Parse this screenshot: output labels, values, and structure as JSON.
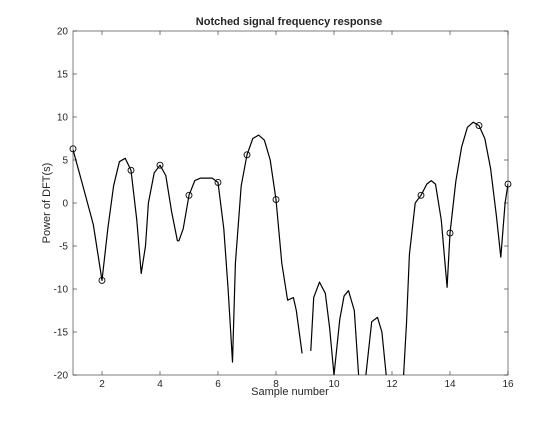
{
  "chart_data": {
    "type": "line",
    "title": "Notched signal frequency response",
    "xlabel": "Sample number",
    "ylabel": "Power of DFT(s)",
    "xlim": [
      1,
      16
    ],
    "ylim": [
      -20,
      20
    ],
    "grid": false,
    "colors": {
      "line": "#000000",
      "markers": "#000000",
      "axes": "#262626"
    },
    "xticks": [
      "2",
      "4",
      "6",
      "8",
      "10",
      "12",
      "14",
      "16"
    ],
    "yticks": [
      "-20",
      "-15",
      "-10",
      "-5",
      "0",
      "5",
      "10",
      "15",
      "20"
    ],
    "series": [
      {
        "kind": "curve",
        "x": [
          1.0,
          1.3,
          1.7,
          2.0,
          2.2,
          2.4,
          2.6,
          2.8,
          3.0,
          3.2,
          3.35,
          3.5,
          3.6,
          3.8,
          4.0,
          4.2,
          4.4,
          4.6,
          4.65,
          4.8,
          5.0,
          5.2,
          5.4,
          5.6,
          5.8,
          6.0,
          6.2,
          6.35,
          6.5,
          6.6,
          6.8,
          7.0,
          7.2,
          7.4,
          7.6,
          7.8,
          8.0,
          8.2,
          8.4,
          8.6,
          8.7,
          8.9,
          9.0,
          9.2,
          9.3,
          9.5,
          9.7,
          9.85,
          10.0,
          10.2,
          10.35,
          10.5,
          10.7,
          10.85,
          11.0,
          11.1,
          11.3,
          11.5,
          11.65,
          11.8,
          12.0,
          12.2,
          12.4,
          12.5,
          12.6,
          12.8,
          13.0,
          13.2,
          13.35,
          13.5,
          13.7,
          13.9,
          14.0,
          14.2,
          14.4,
          14.6,
          14.8,
          15.0,
          15.2,
          15.4,
          15.6,
          15.75,
          15.9,
          16.0
        ],
        "y": [
          6.2,
          2.5,
          -2.5,
          -9.0,
          -3.0,
          2.0,
          4.8,
          5.2,
          3.8,
          -2.0,
          -8.2,
          -5.0,
          0.0,
          3.5,
          4.4,
          3.2,
          -1.0,
          -4.4,
          -4.4,
          -3.0,
          0.9,
          2.6,
          2.9,
          2.9,
          2.9,
          2.4,
          -3.0,
          -10.0,
          -18.5,
          -7.0,
          2.0,
          5.6,
          7.5,
          7.9,
          7.3,
          5.0,
          0.4,
          -7.0,
          -11.3,
          -11.0,
          -12.5,
          -17.5,
          null,
          -17.2,
          -11.0,
          -9.2,
          -10.5,
          -14.5,
          -20.0,
          -13.5,
          -10.8,
          -10.2,
          -12.5,
          -20.0,
          null,
          -20.0,
          -13.8,
          -13.3,
          -15.0,
          -20.0,
          null,
          null,
          -20.0,
          -14.0,
          -6.0,
          0.0,
          0.9,
          2.2,
          2.6,
          2.2,
          -2.0,
          -9.8,
          -3.5,
          2.5,
          6.5,
          8.8,
          9.4,
          9.0,
          7.5,
          4.0,
          -1.5,
          -6.3,
          0.0,
          2.2
        ]
      },
      {
        "kind": "markers",
        "x": [
          1,
          2,
          3,
          4,
          5,
          6,
          7,
          8,
          13,
          14,
          15,
          16
        ],
        "y": [
          6.3,
          -9.0,
          3.8,
          4.4,
          0.9,
          2.4,
          5.6,
          0.4,
          0.9,
          -3.5,
          9.0,
          2.2
        ]
      }
    ]
  }
}
